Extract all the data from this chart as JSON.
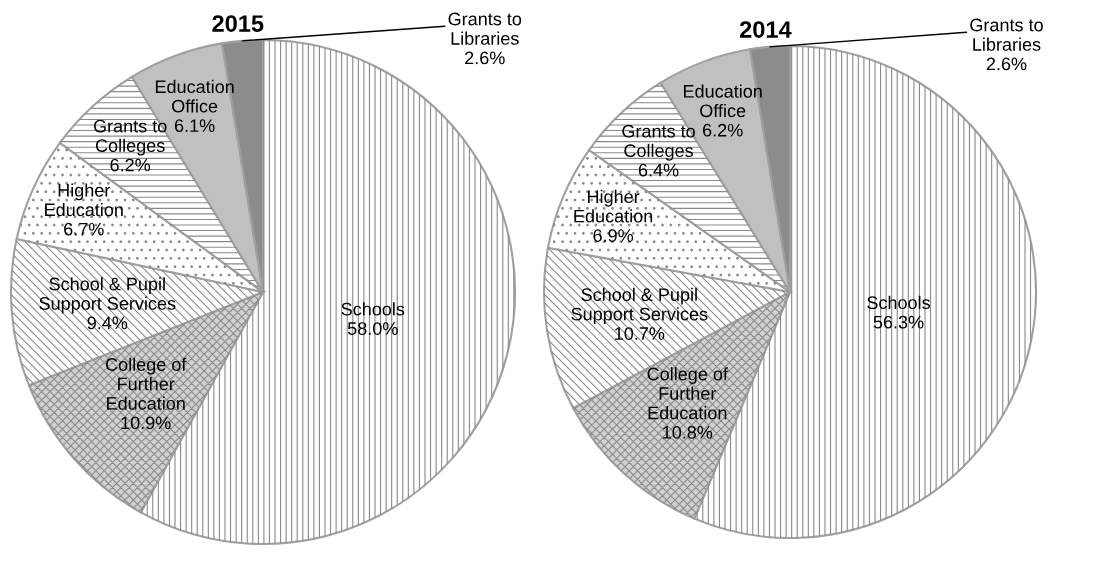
{
  "chart_data": [
    {
      "type": "pie",
      "title": "2015",
      "categories": [
        "Schools",
        "College of\nFurther\nEducation",
        "School & Pupil\nSupport Services",
        "Higher\nEducation",
        "Grants to\nColleges",
        "Education\nOffice",
        "Grants to\nLibraries"
      ],
      "values": [
        58.0,
        10.9,
        9.4,
        6.7,
        6.2,
        6.1,
        2.6
      ],
      "colors": [
        "#ffffff",
        "#d0d0d0",
        "#ffffff",
        "#ffffff",
        "#ffffff",
        "#c0c0c0",
        "#8c8c8c"
      ],
      "value_labels": [
        "58.0%",
        "10.9%",
        "9.4%",
        "6.7%",
        "6.2%",
        "6.1%",
        "2.6%"
      ]
    },
    {
      "type": "pie",
      "title": "2014",
      "categories": [
        "Schools",
        "College of\nFurther\nEducation",
        "School & Pupil\nSupport Services",
        "Higher\nEducation",
        "Grants to\nColleges",
        "Education\nOffice",
        "Grants to\nLibraries"
      ],
      "values": [
        56.3,
        10.8,
        10.7,
        6.9,
        6.4,
        6.2,
        2.6
      ],
      "colors": [
        "#ffffff",
        "#d0d0d0",
        "#ffffff",
        "#ffffff",
        "#ffffff",
        "#c0c0c0",
        "#8c8c8c"
      ],
      "value_labels": [
        "56.3%",
        "10.8%",
        "10.7%",
        "6.9%",
        "6.4%",
        "6.2%",
        "2.6%"
      ]
    }
  ]
}
